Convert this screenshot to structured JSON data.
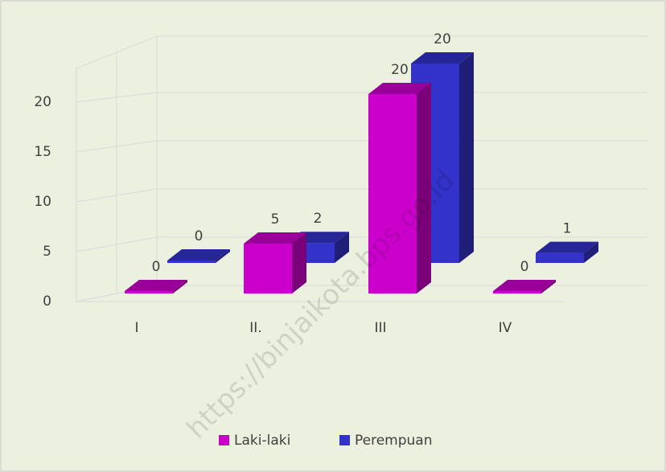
{
  "chart_data": {
    "type": "bar3d",
    "categories": [
      "I",
      "II.",
      "III",
      "IV"
    ],
    "series": [
      {
        "name": "Laki-laki",
        "color": "#cc00cc",
        "values": [
          0,
          5,
          20,
          0
        ]
      },
      {
        "name": "Perempuan",
        "color": "#3333cc",
        "values": [
          0,
          2,
          20,
          1
        ]
      }
    ],
    "ylim": [
      0,
      25
    ],
    "yticks": [
      0,
      5,
      10,
      15,
      20
    ],
    "grid": true,
    "legend": "bottom",
    "watermark": "https://binjaikota.bps.go.id"
  }
}
